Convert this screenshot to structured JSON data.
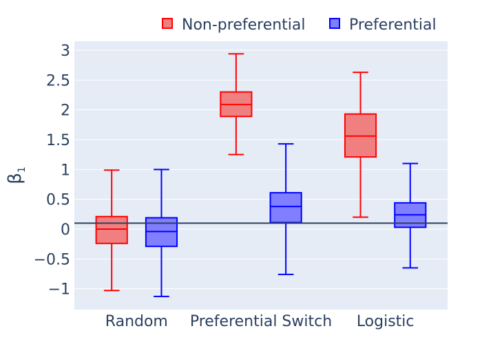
{
  "chart_data": {
    "type": "box",
    "categories": [
      "Random",
      "Preferential Switch",
      "Logistic"
    ],
    "series": [
      {
        "name": "Non-preferential",
        "color": "#ff0000",
        "fill": "#f08080",
        "boxes": [
          {
            "min": -1.03,
            "q1": -0.24,
            "median": 0.0,
            "q3": 0.21,
            "max": 0.99
          },
          {
            "min": 1.25,
            "q1": 1.89,
            "median": 2.09,
            "q3": 2.3,
            "max": 2.94
          },
          {
            "min": 0.2,
            "q1": 1.21,
            "median": 1.56,
            "q3": 1.93,
            "max": 2.63
          }
        ]
      },
      {
        "name": "Preferential",
        "color": "#0000ff",
        "fill": "#7f7fff",
        "boxes": [
          {
            "min": -1.13,
            "q1": -0.29,
            "median": -0.04,
            "q3": 0.19,
            "max": 1.0
          },
          {
            "min": -0.76,
            "q1": 0.11,
            "median": 0.38,
            "q3": 0.61,
            "max": 1.43
          },
          {
            "min": -0.65,
            "q1": 0.03,
            "median": 0.24,
            "q3": 0.44,
            "max": 1.1
          }
        ]
      }
    ],
    "ylabel": "β",
    "ylabel_sub": "1",
    "yticks": [
      -1,
      -0.5,
      0,
      0.5,
      1,
      1.5,
      2,
      2.5,
      3
    ],
    "ytick_labels": [
      "−1",
      "−0.5",
      "0",
      "0.5",
      "1",
      "1.5",
      "2",
      "2.5",
      "3"
    ],
    "ylim": [
      -1.35,
      3.15
    ],
    "reference_line": 0.1,
    "legend_position": "top-right",
    "grid": true
  }
}
